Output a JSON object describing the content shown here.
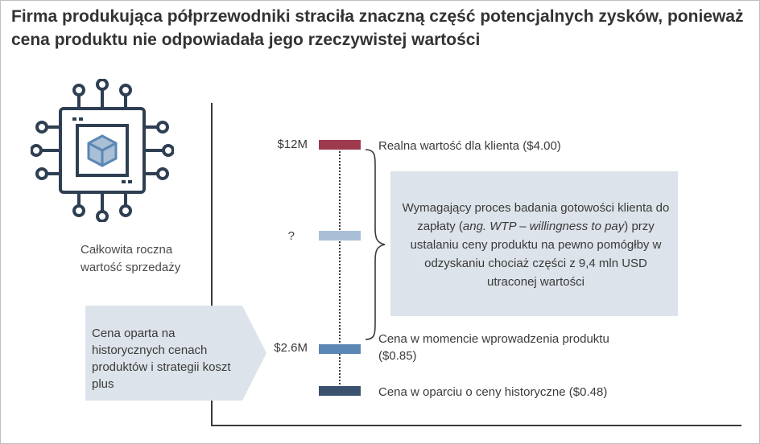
{
  "title": "Firma produkująca półprzewodniki straciła znaczną część potencjalnych zysków, ponieważ cena produktu nie odpowiadała jego rzeczywistej wartości",
  "axis_label": "Całkowita roczna wartość sprzedaży",
  "left_box_text": "Cena oparta na historycznych cenach produktów i strategii koszt plus",
  "levels": [
    {
      "value_label": "$12M",
      "description": "Realna wartość dla klienta ($4.00)",
      "color": "#9e3a4d"
    },
    {
      "value_label": "?",
      "description": "",
      "color": "#a8bfd5"
    },
    {
      "value_label": "$2.6M",
      "description": "Cena w momencie wprowadzenia produktu ($0.85)",
      "color": "#5b87b5"
    },
    {
      "value_label": "",
      "description": "Cena w oparciu o ceny historyczne ($0.48)",
      "color": "#3a5170"
    }
  ],
  "right_box": {
    "part1": "Wymagający proces badania gotowości klienta do zapłaty (",
    "italic": "ang. WTP – willingness to pay",
    "part2": ") przy ustalaniu ceny produktu na pewno pomógłby w odzyskaniu chociaż części z 9,4 mln USD utraconej wartości"
  },
  "icon": "microchip-icon",
  "colors": {
    "box_fill": "#dde3ea",
    "chip_stroke": "#2e3f52",
    "chip_accent": "#5b87b5"
  }
}
